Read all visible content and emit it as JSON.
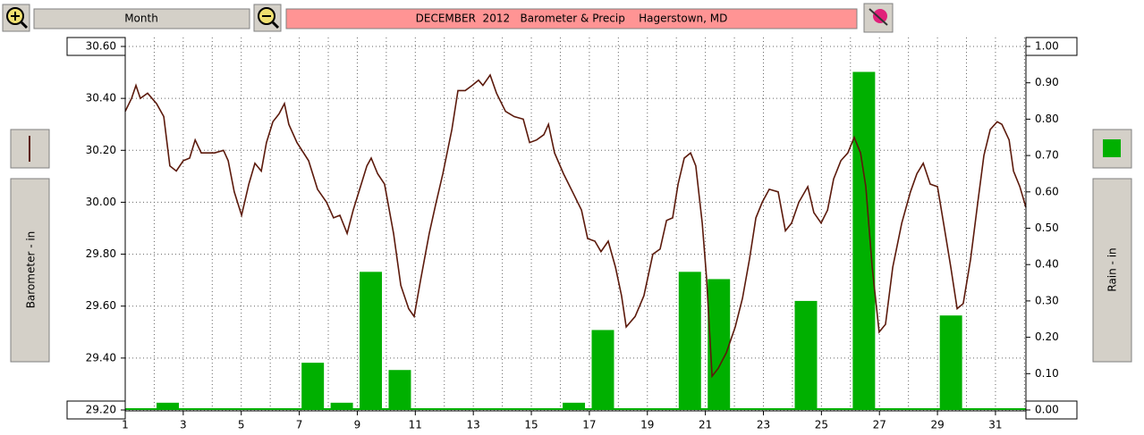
{
  "toolbar": {
    "period": "Month"
  },
  "chart_data": {
    "type": "combo",
    "title": "DECEMBER  2012   Barometer & Precip    Hagerstown, MD",
    "ylabel": "Barometer - in",
    "y2label": "Rain - in",
    "xlim": [
      1,
      32.05
    ],
    "xticks": [
      1,
      3,
      5,
      7,
      9,
      11,
      13,
      15,
      17,
      19,
      21,
      23,
      25,
      27,
      29,
      31
    ],
    "ylim": [
      29.2,
      30.6
    ],
    "yticks": [
      {
        "value": 29.2,
        "label": "29.20"
      },
      {
        "value": 29.4,
        "label": "29.40"
      },
      {
        "value": 29.6,
        "label": "29.60"
      },
      {
        "value": 29.8,
        "label": "29.80"
      },
      {
        "value": 30.0,
        "label": "30.00"
      },
      {
        "value": 30.2,
        "label": "30.20"
      },
      {
        "value": 30.4,
        "label": "30.40"
      },
      {
        "value": 30.6,
        "label": "30.60"
      }
    ],
    "y2lim": [
      0,
      1
    ],
    "y2ticks": [
      {
        "value": 0,
        "label": "0.00"
      },
      {
        "value": 0.1,
        "label": "0.10"
      },
      {
        "value": 0.2,
        "label": "0.20"
      },
      {
        "value": 0.3,
        "label": "0.30"
      },
      {
        "value": 0.4,
        "label": "0.40"
      },
      {
        "value": 0.5,
        "label": "0.50"
      },
      {
        "value": 0.6,
        "label": "0.60"
      },
      {
        "value": 0.7,
        "label": "0.70"
      },
      {
        "value": 0.8,
        "label": "0.80"
      },
      {
        "value": 0.9,
        "label": "0.90"
      },
      {
        "value": 1,
        "label": "1.00"
      }
    ],
    "grid": true,
    "series": [
      {
        "type": "line",
        "color": "#5c1a0c",
        "x": [
          1.0,
          1.22,
          1.37,
          1.52,
          1.77,
          2.08,
          2.33,
          2.54,
          2.76,
          3.0,
          3.22,
          3.41,
          3.62,
          3.84,
          4.08,
          4.39,
          4.55,
          4.76,
          5.01,
          5.26,
          5.47,
          5.69,
          5.87,
          6.09,
          6.3,
          6.49,
          6.64,
          6.92,
          7.32,
          7.63,
          7.94,
          8.18,
          8.4,
          8.65,
          8.86,
          9.11,
          9.33,
          9.48,
          9.7,
          9.94,
          10.25,
          10.5,
          10.77,
          10.96,
          11.18,
          11.48,
          11.7,
          11.95,
          12.26,
          12.47,
          12.72,
          12.96,
          13.18,
          13.33,
          13.58,
          13.8,
          14.11,
          14.41,
          14.72,
          14.94,
          15.18,
          15.43,
          15.59,
          15.8,
          16.11,
          16.42,
          16.73,
          16.94,
          17.19,
          17.4,
          17.65,
          17.9,
          18.11,
          18.27,
          18.58,
          18.88,
          19.19,
          19.44,
          19.66,
          19.87,
          20.06,
          20.27,
          20.49,
          20.67,
          20.89,
          21.04,
          21.23,
          21.44,
          21.72,
          22.03,
          22.28,
          22.52,
          22.74,
          22.96,
          23.2,
          23.51,
          23.76,
          23.97,
          24.22,
          24.53,
          24.74,
          24.99,
          25.21,
          25.42,
          25.67,
          25.91,
          26.13,
          26.35,
          26.53,
          26.75,
          26.99,
          27.21,
          27.46,
          27.77,
          28.07,
          28.29,
          28.51,
          28.75,
          29.0,
          29.21,
          29.46,
          29.68,
          29.89,
          30.14,
          30.39,
          30.6,
          30.82,
          31.06,
          31.22,
          31.47,
          31.62,
          31.84,
          32.05
        ],
        "values": [
          30.35,
          30.4,
          30.45,
          30.4,
          30.42,
          30.38,
          30.33,
          30.14,
          30.12,
          30.16,
          30.17,
          30.24,
          30.19,
          30.19,
          30.19,
          30.2,
          30.16,
          30.04,
          29.95,
          30.07,
          30.15,
          30.12,
          30.23,
          30.31,
          30.34,
          30.38,
          30.3,
          30.23,
          30.16,
          30.05,
          30.0,
          29.94,
          29.95,
          29.88,
          29.97,
          30.06,
          30.14,
          30.17,
          30.11,
          30.07,
          29.88,
          29.68,
          29.59,
          29.56,
          29.7,
          29.88,
          29.99,
          30.11,
          30.28,
          30.43,
          30.43,
          30.45,
          30.47,
          30.45,
          30.49,
          30.42,
          30.35,
          30.33,
          30.32,
          30.23,
          30.24,
          30.26,
          30.3,
          30.19,
          30.11,
          30.04,
          29.97,
          29.86,
          29.85,
          29.81,
          29.85,
          29.75,
          29.64,
          29.52,
          29.56,
          29.64,
          29.8,
          29.82,
          29.93,
          29.94,
          30.07,
          30.17,
          30.19,
          30.14,
          29.92,
          29.71,
          29.33,
          29.36,
          29.42,
          29.52,
          29.63,
          29.78,
          29.94,
          30.0,
          30.05,
          30.04,
          29.89,
          29.92,
          30.0,
          30.06,
          29.96,
          29.92,
          29.97,
          30.09,
          30.16,
          30.19,
          30.25,
          30.19,
          30.06,
          29.75,
          29.5,
          29.53,
          29.75,
          29.92,
          30.04,
          30.11,
          30.15,
          30.07,
          30.06,
          29.92,
          29.75,
          29.59,
          29.61,
          29.78,
          30.0,
          30.18,
          30.28,
          30.31,
          30.3,
          30.24,
          30.12,
          30.06,
          29.98
        ]
      },
      {
        "type": "bar",
        "axis": "y2",
        "color": "#00b000",
        "x": [
          1,
          2,
          3,
          4,
          5,
          6,
          7,
          8,
          9,
          10,
          11,
          12,
          13,
          14,
          15,
          16,
          17,
          18,
          19,
          20,
          21,
          22,
          23,
          24,
          25,
          26,
          27,
          28,
          29,
          30,
          31
        ],
        "values": [
          0,
          0.02,
          0,
          0,
          0,
          0,
          0.13,
          0.02,
          0.38,
          0.11,
          0,
          0,
          0,
          0,
          0,
          0.02,
          0.22,
          0,
          0,
          0.38,
          0.36,
          0,
          0,
          0.3,
          0,
          0.93,
          0,
          0,
          0.26,
          0,
          0
        ]
      }
    ]
  }
}
